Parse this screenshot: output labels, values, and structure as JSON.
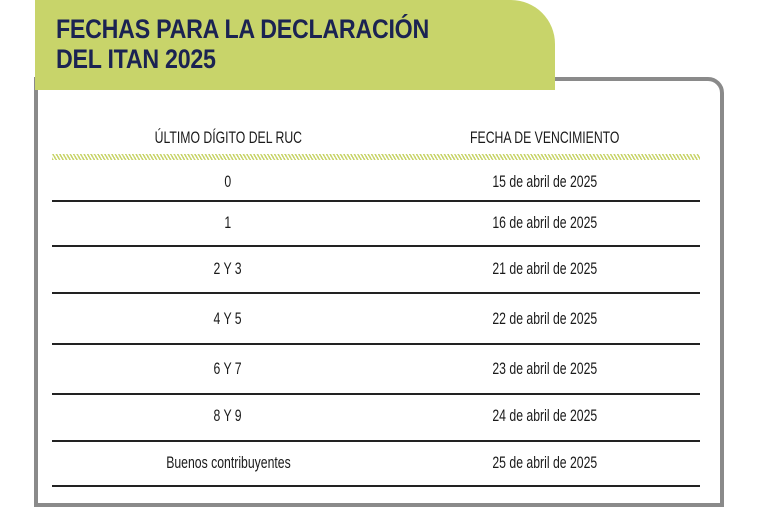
{
  "title_line1": "FECHAS PARA LA DECLARACIÓN",
  "title_line2": "DEL ITAN 2025",
  "colors": {
    "accent_green": "#c8d46a",
    "title_navy": "#1b2352",
    "border_gray": "#8a8a8a"
  },
  "table": {
    "headers": [
      "ÚLTIMO DÍGITO DEL RUC",
      "FECHA DE VENCIMIENTO"
    ],
    "rows": [
      {
        "digit": "0",
        "date": "15 de abril de 2025"
      },
      {
        "digit": "1",
        "date": "16 de abril de 2025"
      },
      {
        "digit": "2 Y 3",
        "date": "21 de abril de 2025"
      },
      {
        "digit": "4 Y 5",
        "date": "22 de abril de 2025"
      },
      {
        "digit": "6 Y 7",
        "date": "23 de abril de 2025"
      },
      {
        "digit": "8 Y 9",
        "date": "24 de abril de 2025"
      },
      {
        "digit": "Buenos contribuyentes",
        "date": "25 de abril de 2025"
      }
    ]
  }
}
